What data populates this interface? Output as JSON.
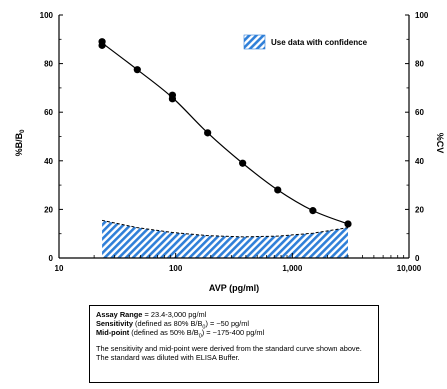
{
  "chart_data": {
    "type": "line",
    "xlabel": "AVP (pg/ml)",
    "ylabel_left": "%B/B0",
    "ylabel_right": "%CV",
    "x_scale": "log",
    "xlim": [
      10,
      10000
    ],
    "ylim": [
      0,
      100
    ],
    "x_ticks": [
      10,
      100,
      1000,
      10000
    ],
    "x_tick_labels": [
      "10",
      "100",
      "1,000",
      "10,000"
    ],
    "y_ticks": [
      0,
      20,
      40,
      60,
      80,
      100
    ],
    "y_tick_labels": [
      "0",
      "20",
      "40",
      "60",
      "80",
      "100"
    ],
    "y2_tick_labels": [
      "0",
      "20",
      "40",
      "60",
      "80",
      "100"
    ],
    "legend": {
      "label": "Use data with confidence",
      "position": "top-right"
    },
    "series": [
      {
        "x": [
          23.4,
          46.9,
          93.8,
          188,
          375,
          750,
          1500,
          3000
        ],
        "y": [
          88.5,
          77.5,
          66,
          51.5,
          39,
          28,
          19.5,
          14
        ],
        "y_replicates": [
          [
            87.5,
            89
          ],
          [
            77.5
          ],
          [
            65.5,
            67
          ],
          [
            51.5
          ],
          [
            39
          ],
          [
            28
          ],
          [
            19.5
          ],
          [
            14
          ]
        ]
      },
      {
        "x": [
          23.4,
          46.9,
          93.8,
          188,
          375,
          750,
          1500,
          3000
        ],
        "y": [
          15.5,
          12.5,
          10.5,
          9.2,
          8.7,
          9.0,
          10.2,
          12.5
        ]
      }
    ]
  },
  "summary": {
    "range_label": "Assay Range",
    "range_value": " = 23.4-3,000 pg/ml",
    "sens_label": "Sensitivity",
    "sens_def_a": " (defined as 80% B/B",
    "sens_sub": "0",
    "sens_def_b": ") =  ~50 pg/ml",
    "mid_label": "Mid-point",
    "mid_def_a": " (defined as 50% B/B",
    "mid_sub": "0",
    "mid_def_b": ") =  ~175-400 pg/ml",
    "note": "The sensitivity and mid-point were derived from the standard curve shown above. The standard was diluted with ELISA Buffer."
  },
  "colors": {
    "hatch": "#2f7fd8",
    "line": "#000000"
  }
}
